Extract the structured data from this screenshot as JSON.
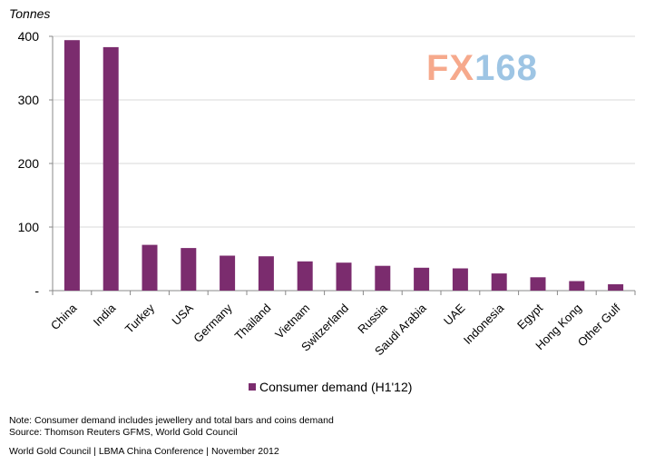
{
  "chart_data": {
    "type": "bar",
    "unit_label": "Tonnes",
    "categories": [
      "China",
      "India",
      "Turkey",
      "USA",
      "Germany",
      "Thailand",
      "Vietnam",
      "Switzerland",
      "Russia",
      "Saudi Arabia",
      "UAE",
      "Indonesia",
      "Egypt",
      "Hong Kong",
      "Other Gulf"
    ],
    "series": [
      {
        "name": "Consumer demand (H1'12)",
        "color": "#7b2c6e",
        "values": [
          394,
          383,
          72,
          67,
          55,
          54,
          46,
          44,
          39,
          36,
          35,
          27,
          21,
          15,
          10
        ]
      }
    ],
    "y_ticks": [
      "-",
      "100",
      "200",
      "300",
      "400"
    ],
    "ylim": [
      0,
      400
    ],
    "legend_position": "bottom-center",
    "grid": "horizontal"
  },
  "notes": {
    "note_line": "Note: Consumer demand includes jewellery and total bars and coins demand",
    "source_line": "Source: Thomson Reuters GFMS, World Gold Council",
    "footer_line": "World Gold Council  |  LBMA China Conference |  November 2012"
  },
  "watermark": {
    "fx": "FX",
    "num": "168"
  }
}
